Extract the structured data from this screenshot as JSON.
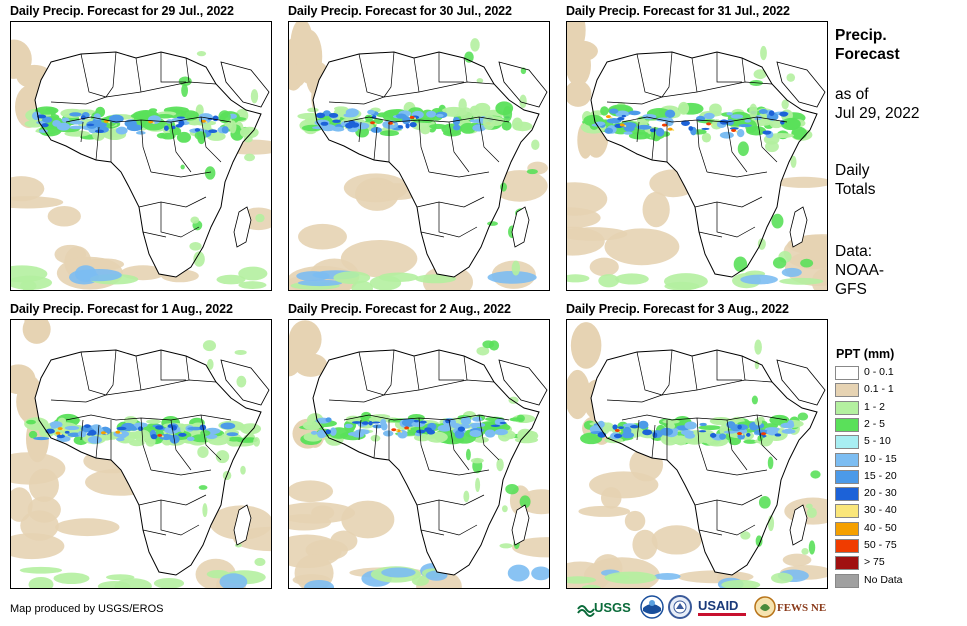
{
  "panels": [
    {
      "title": "Daily Precip. Forecast for 29 Jul., 2022"
    },
    {
      "title": "Daily Precip. Forecast for 30 Jul., 2022"
    },
    {
      "title": "Daily Precip. Forecast for 31 Jul., 2022"
    },
    {
      "title": "Daily Precip. Forecast for 1 Aug., 2022"
    },
    {
      "title": "Daily Precip. Forecast for 2 Aug., 2022"
    },
    {
      "title": "Daily Precip. Forecast for 3 Aug., 2022"
    }
  ],
  "side": {
    "title_line1": "Precip.",
    "title_line2": "Forecast",
    "asof_line1": "as of",
    "asof_line2": "Jul 29, 2022",
    "totals_line1": "Daily",
    "totals_line2": "Totals",
    "data_line1": "Data:",
    "data_line2": "NOAA-",
    "data_line3": "GFS"
  },
  "legend": {
    "title": "PPT (mm)",
    "items": [
      {
        "label": "0 - 0.1",
        "color": "#ffffff"
      },
      {
        "label": "0.1 - 1",
        "color": "#e6d3b3"
      },
      {
        "label": "1 - 2",
        "color": "#b4f0a0"
      },
      {
        "label": "2 - 5",
        "color": "#5ae05a"
      },
      {
        "label": "5 - 10",
        "color": "#a8eef2"
      },
      {
        "label": "10 - 15",
        "color": "#7cbdf2"
      },
      {
        "label": "15 - 20",
        "color": "#4c9ae8"
      },
      {
        "label": "20 - 30",
        "color": "#1c62d8"
      },
      {
        "label": "30 - 40",
        "color": "#fae67a"
      },
      {
        "label": "40 - 50",
        "color": "#f5a000"
      },
      {
        "label": "50 - 75",
        "color": "#f03c00"
      },
      {
        "label": "> 75",
        "color": "#a01010"
      },
      {
        "label": "No Data",
        "color": "#a0a0a0"
      }
    ]
  },
  "credit": "Map produced by USGS/EROS",
  "logos": {
    "usgs": "USGS",
    "usaid": "USAID",
    "fewsnet": "FEWS NET"
  }
}
